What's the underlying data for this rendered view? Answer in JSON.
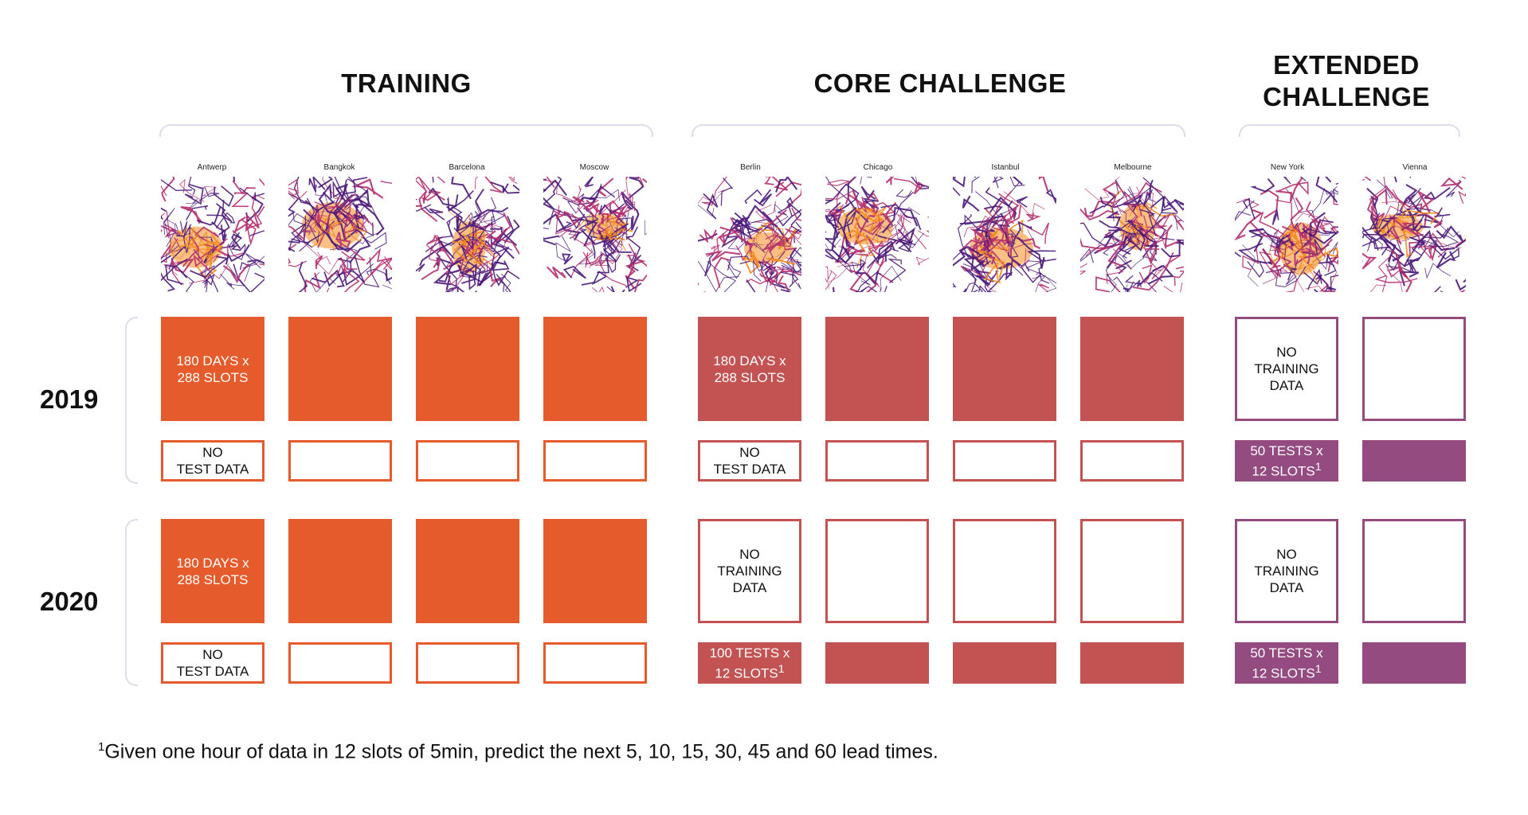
{
  "groups": {
    "training": {
      "title": "TRAINING"
    },
    "core": {
      "title": "CORE CHALLENGE"
    },
    "extended": {
      "title_line1": "EXTENDED",
      "title_line2": "CHALLENGE"
    }
  },
  "cities": [
    {
      "name": "Antwerp",
      "group": "training"
    },
    {
      "name": "Bangkok",
      "group": "training"
    },
    {
      "name": "Barcelona",
      "group": "training"
    },
    {
      "name": "Moscow",
      "group": "training"
    },
    {
      "name": "Berlin",
      "group": "core"
    },
    {
      "name": "Chicago",
      "group": "core"
    },
    {
      "name": "Istanbul",
      "group": "core"
    },
    {
      "name": "Melbourne",
      "group": "core"
    },
    {
      "name": "New York",
      "group": "extended"
    },
    {
      "name": "Vienna",
      "group": "extended"
    }
  ],
  "years": [
    "2019",
    "2020"
  ],
  "cell_text": {
    "days_slots_line1": "180 DAYS  x",
    "days_slots_line2": "288 SLOTS",
    "no_test_line1": "NO",
    "no_test_line2": "TEST DATA",
    "no_training_line1": "NO",
    "no_training_line2": "TRAINING",
    "no_training_line3": "DATA",
    "tests50_line1": "50 TESTS x",
    "tests100_line1": "100 TESTS x",
    "tests_line2": "12 SLOTS",
    "footnote_mark": "1"
  },
  "footnote": {
    "mark": "1",
    "text": "Given one hour of data in 12 slots of 5min, predict the next 5, 10, 15, 30, 45 and 60 lead times."
  },
  "colors": {
    "training": "#e55b2b",
    "core": "#c35353",
    "extended": "#934b80",
    "map_dark": "#4b1a7a",
    "map_mid": "#b52f6e",
    "map_hot": "#f48a1e"
  }
}
